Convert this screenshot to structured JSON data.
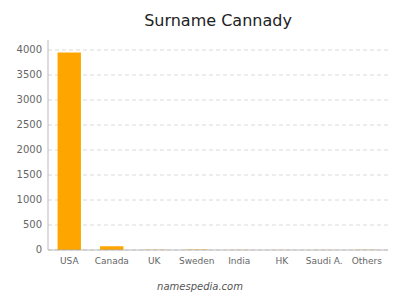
{
  "chart_data": {
    "type": "bar",
    "title": "Surname Cannady",
    "categories": [
      "USA",
      "Canada",
      "UK",
      "Sweden",
      "India",
      "HK",
      "Saudi A.",
      "Others"
    ],
    "values": [
      3950,
      75,
      5,
      8,
      3,
      2,
      2,
      4
    ],
    "color": "#FFA500",
    "ylim": [
      0,
      4200
    ],
    "yticks": [
      0,
      500,
      1000,
      1500,
      2000,
      2500,
      3000,
      3500,
      4000
    ],
    "grid": true,
    "annotations": [
      "namespedia.com"
    ]
  }
}
